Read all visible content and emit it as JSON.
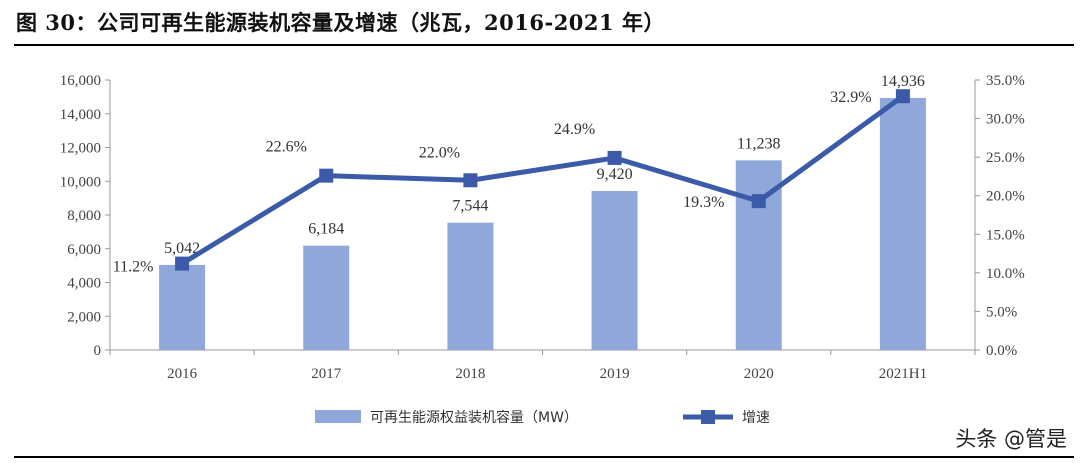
{
  "title": "图 30：公司可再生能源装机容量及增速（兆瓦，2016-2021 年）",
  "watermark": "头条 @管是",
  "colors": {
    "bar": "#8FA7D9",
    "line": "#3B5BA8"
  },
  "chart_data": {
    "type": "bar+line",
    "categories": [
      "2016",
      "2017",
      "2018",
      "2019",
      "2020",
      "2021H1"
    ],
    "series": [
      {
        "name": "可再生能源权益装机容量（MW）",
        "type": "bar",
        "axis": "left",
        "values": [
          5042,
          6184,
          7544,
          9420,
          11238,
          14936
        ],
        "labels": [
          "5,042",
          "6,184",
          "7,544",
          "9,420",
          "11,238",
          "14,936"
        ]
      },
      {
        "name": "增速",
        "type": "line",
        "axis": "right",
        "values": [
          11.2,
          22.6,
          22.0,
          24.9,
          19.3,
          32.9
        ],
        "labels": [
          "11.2%",
          "22.6%",
          "22.0%",
          "24.9%",
          "19.3%",
          "32.9%"
        ]
      }
    ],
    "y_left": {
      "min": 0,
      "max": 16000,
      "ticks": [
        "0",
        "2,000",
        "4,000",
        "6,000",
        "8,000",
        "10,000",
        "12,000",
        "14,000",
        "16,000"
      ]
    },
    "y_right": {
      "min": 0,
      "max": 35,
      "ticks": [
        "0.0%",
        "5.0%",
        "10.0%",
        "15.0%",
        "20.0%",
        "25.0%",
        "30.0%",
        "35.0%"
      ]
    },
    "legend_position": "bottom",
    "grid": false
  }
}
